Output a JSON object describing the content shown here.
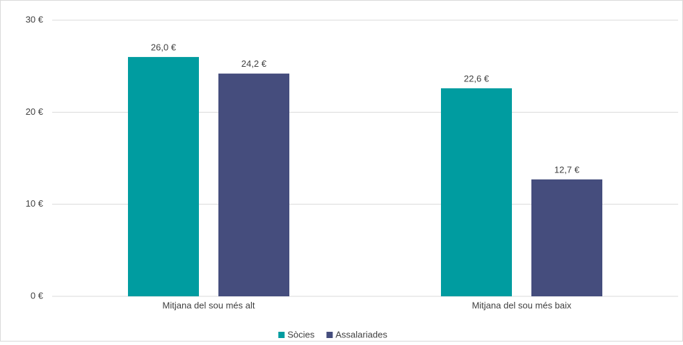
{
  "chart_data": {
    "type": "bar",
    "categories": [
      "Mitjana del sou més alt",
      "Mitjana del sou més baix"
    ],
    "series": [
      {
        "name": "Sòcies",
        "color": "#009ca0",
        "values": [
          26.0,
          22.6
        ],
        "value_labels": [
          "26,0 €",
          "22,6 €"
        ]
      },
      {
        "name": "Assalariades",
        "color": "#454d7d",
        "values": [
          24.2,
          12.7
        ],
        "value_labels": [
          "24,2 €",
          "12,7 €"
        ]
      }
    ],
    "ylim": [
      0,
      30
    ],
    "yticks": [
      {
        "value": 0,
        "label": "0 €"
      },
      {
        "value": 10,
        "label": "10 €"
      },
      {
        "value": 20,
        "label": "20 €"
      },
      {
        "value": 30,
        "label": "30 €"
      }
    ],
    "grid": true,
    "legend": "bottom"
  }
}
